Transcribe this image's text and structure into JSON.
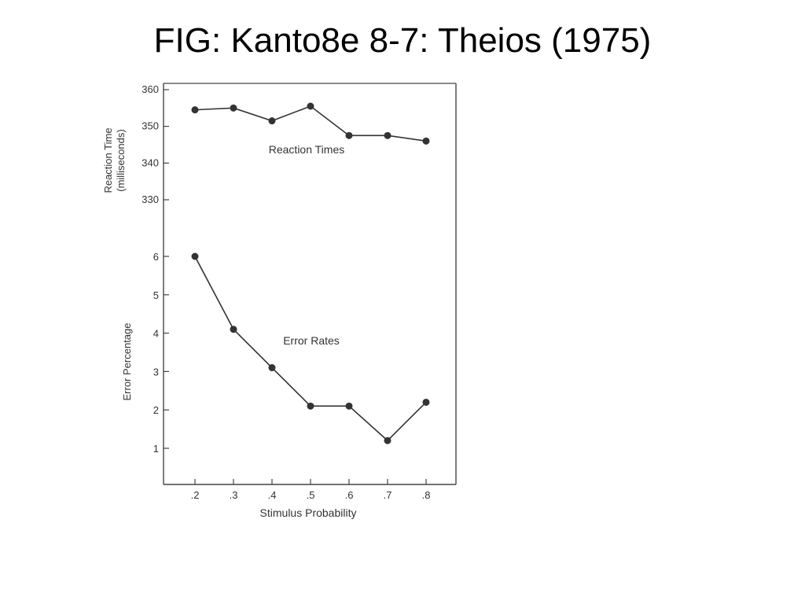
{
  "slide": {
    "title": "FIG: Kanto8e 8-7: Theios (1975)"
  },
  "chart_data": [
    {
      "type": "line",
      "title": "",
      "annotation": "Reaction Times",
      "ylabel_lines": [
        "Reaction Time",
        "(milliseconds)"
      ],
      "x": [
        0.2,
        0.3,
        0.4,
        0.5,
        0.6,
        0.7,
        0.8
      ],
      "series": [
        {
          "values": [
            354.5,
            355,
            351.5,
            355.5,
            347.5,
            347.5,
            346
          ]
        }
      ],
      "yticks": [
        330,
        340,
        350,
        360
      ],
      "ylim": [
        330,
        360
      ],
      "grid": false
    },
    {
      "type": "line",
      "title": "",
      "annotation": "Error Rates",
      "ylabel": "Error Percentage",
      "xlabel": "Stimulus Probability",
      "x": [
        0.2,
        0.3,
        0.4,
        0.5,
        0.6,
        0.7,
        0.8
      ],
      "xticklabels": [
        ".2",
        ".3",
        ".4",
        ".5",
        ".6",
        ".7",
        ".8"
      ],
      "series": [
        {
          "values": [
            6,
            4.1,
            3.1,
            2.1,
            2.1,
            1.2,
            2.2
          ]
        }
      ],
      "yticks": [
        1,
        2,
        3,
        4,
        5,
        6
      ],
      "grid": false
    }
  ],
  "colors": {
    "ink": "#333333",
    "frame": "#444444",
    "title": "#000000"
  }
}
